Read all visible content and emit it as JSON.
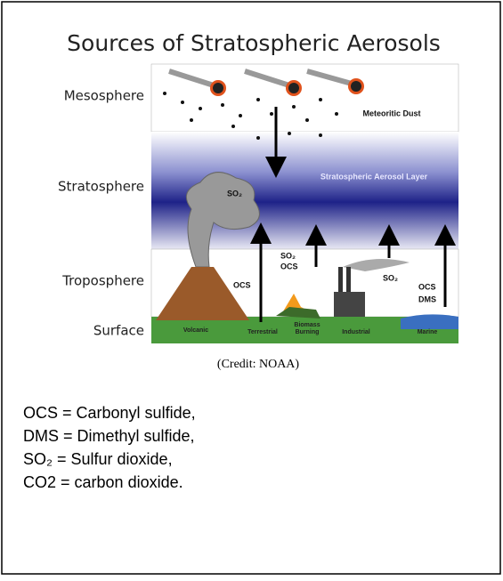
{
  "title": "Sources of Stratospheric Aerosols",
  "layers": [
    "Mesosphere",
    "Stratosphere",
    "Troposphere",
    "Surface"
  ],
  "labels": {
    "meteoritic_dust": "Meteoritic Dust",
    "aerosol_layer": "Stratospheric Aerosol Layer",
    "plume_so2": "SO₂",
    "volcanic_ocs": "OCS",
    "biomass_so2": "SO₂",
    "biomass_ocs": "OCS",
    "industrial_so2": "SO₂",
    "marine_ocs": "OCS",
    "marine_dms": "DMS"
  },
  "sources": [
    "Volcanic",
    "Terrestrial",
    "Biomass",
    "Burning",
    "Industrial",
    "Marine"
  ],
  "credit": "(Credit: NOAA)",
  "definitions": [
    "OCS = Carbonyl sulfide,",
    "DMS = Dimethyl sulfide,",
    "SO₂ = Sulfur dioxide,",
    "CO2 = carbon dioxide."
  ]
}
